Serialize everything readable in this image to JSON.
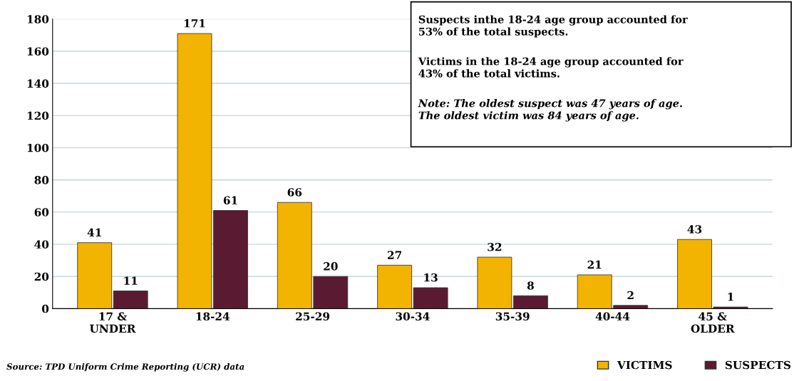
{
  "chart_data": {
    "type": "bar",
    "categories": [
      "17 &\nUNDER",
      "18-24",
      "25-29",
      "30-34",
      "35-39",
      "40-44",
      "45 &\nOLDER"
    ],
    "series": [
      {
        "name": "VICTIMS",
        "color": "#f2b400",
        "values": [
          41,
          171,
          66,
          27,
          32,
          21,
          43
        ]
      },
      {
        "name": "SUSPECTS",
        "color": "#5a1a32",
        "values": [
          11,
          61,
          20,
          13,
          8,
          2,
          1
        ]
      }
    ],
    "ylim": [
      0,
      180
    ],
    "yticks": [
      0,
      20,
      40,
      60,
      80,
      100,
      120,
      140,
      160,
      180
    ],
    "grid": "y",
    "legend": "bottom right",
    "data_labels": true,
    "annotations": [
      "Suspects inthe 18-24 age group accounted for\n53% of the total suspects.",
      "Victims in the 18-24 age group accounted for\n43% of the total victims.",
      "Note: The oldest suspect was 47 years of age.\nThe oldest victim was 84 years of age.",
      "Source: TPD Uniform Crime Reporting (UCR) data"
    ]
  }
}
